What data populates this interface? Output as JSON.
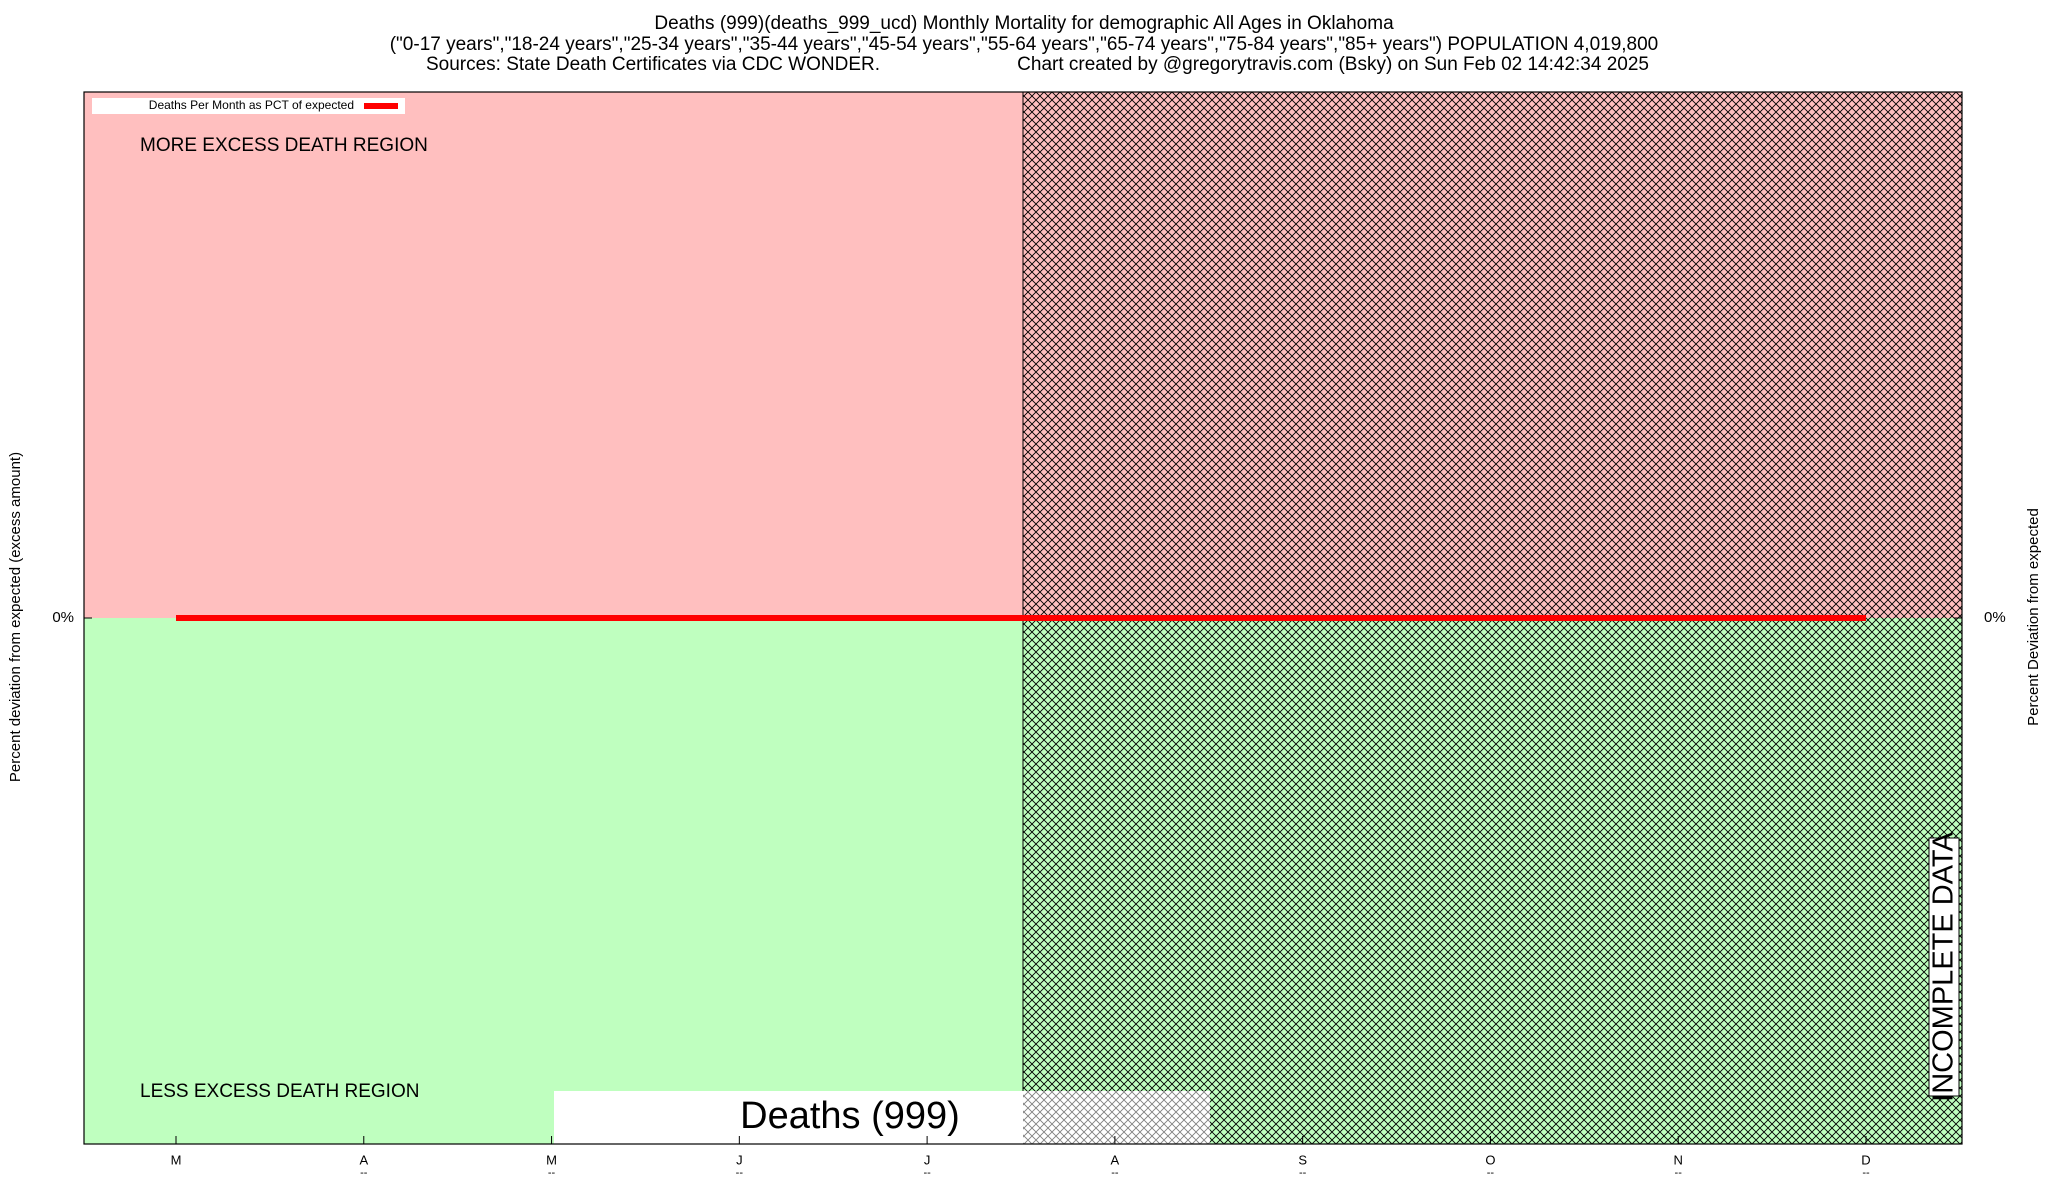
{
  "chart_data": {
    "type": "line",
    "title": "Deaths (999)(deaths_999_ucd) Monthly Mortality for demographic All Ages in Oklahoma",
    "subtitle": "(\"0-17 years\",\"18-24 years\",\"25-34 years\",\"35-44 years\",\"45-54 years\",\"55-64 years\",\"65-74 years\",\"75-84 years\",\"85+ years\") POPULATION 4,019,800",
    "sources": "Sources: State Death Certificates via CDC WONDER.",
    "credit": "Chart created by @gregorytravis.com (Bsky) on Sun Feb 02 14:42:34 2025",
    "ylabel": "Percent deviation from expected (excess amount)",
    "y2label": "Percent Deviation from expected",
    "upper_region_label": "MORE EXCESS DEATH REGION",
    "lower_region_label": "LESS EXCESS DEATH REGION",
    "incomplete_label": "INCOMPLETE DATA",
    "watermark": "Deaths (999)",
    "categories": [
      "M",
      "A",
      "M",
      "J",
      "J",
      "A",
      "S",
      "O",
      "N",
      "D"
    ],
    "x_sublabels": [
      null,
      "--",
      "--",
      "--",
      "--",
      "--",
      "--",
      "--",
      "--",
      "--"
    ],
    "series": [
      {
        "name": "Deaths Per Month as PCT of expected",
        "color": "#ff0000",
        "values": [
          0,
          0,
          0,
          0,
          0,
          0,
          0,
          0,
          0,
          0
        ]
      }
    ],
    "ylim": [
      -10,
      10
    ],
    "yticks": [
      {
        "value": 0,
        "label": "0%"
      }
    ],
    "y2lim": [
      -10,
      10
    ],
    "y2ticks": [
      {
        "value": 0,
        "label": "0%"
      }
    ],
    "upper_color": "#ffbfbf",
    "lower_color": "#bfffbf",
    "legend": "upper-left"
  }
}
